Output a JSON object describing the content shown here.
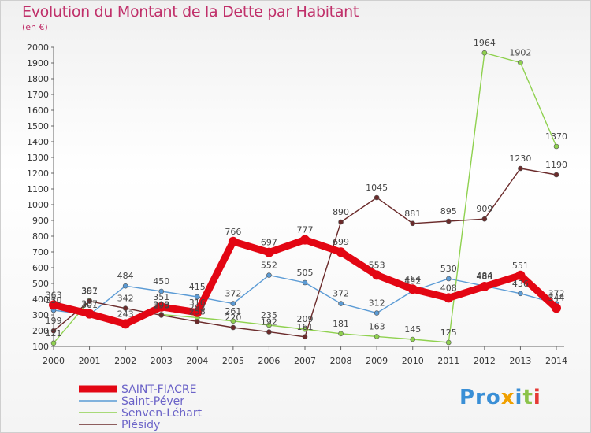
{
  "title": "Evolution du Montant de la Dette par Habitant",
  "subtitle": "(en €)",
  "logo": "Proxiti",
  "chart_data": {
    "type": "line",
    "x": [
      "2000",
      "2001",
      "2002",
      "2003",
      "2004",
      "2005",
      "2006",
      "2007",
      "2008",
      "2009",
      "2010",
      "2011",
      "2012",
      "2013",
      "2014"
    ],
    "ylim": [
      100,
      2000
    ],
    "yticks": [
      100,
      200,
      300,
      400,
      500,
      600,
      700,
      800,
      900,
      1000,
      1100,
      1200,
      1300,
      1400,
      1500,
      1600,
      1700,
      1800,
      1900,
      2000
    ],
    "grid": false,
    "legend_position": "bottom-left",
    "series": [
      {
        "name": "SAINT-FIACRE",
        "color": "#e30613",
        "values": [
          363,
          307,
          243,
          351,
          316,
          766,
          697,
          777,
          699,
          553,
          464,
          408,
          480,
          551,
          344
        ],
        "labels": [
          "363",
          "307",
          "243",
          "351",
          "316",
          "766",
          "697",
          "777",
          "699",
          "553",
          "464",
          "408",
          "480",
          "551",
          "344"
        ]
      },
      {
        "name": "Saint-Péver",
        "color": "#5b9bd5",
        "values": [
          330,
          301,
          484,
          450,
          415,
          372,
          552,
          505,
          372,
          312,
          452,
          530,
          484,
          436,
          372
        ],
        "labels": [
          "330",
          "301",
          "484",
          "450",
          "415",
          "372",
          "552",
          "505",
          "372",
          "312",
          "452",
          "530",
          "484",
          "436",
          "372"
        ]
      },
      {
        "name": "Senven-Léhart",
        "color": "#8fd14f",
        "values": [
          121,
          391,
          null,
          303,
          283,
          261,
          235,
          209,
          181,
          163,
          145,
          125,
          1964,
          1902,
          1370
        ],
        "labels": [
          "121",
          "391",
          "",
          "303",
          "283",
          "261",
          "235",
          "209",
          "181",
          "163",
          "145",
          "125",
          "1964",
          "1902",
          "1370"
        ]
      },
      {
        "name": "Plésidy",
        "color": "#6b2b2b",
        "values": [
          199,
          387,
          342,
          298,
          258,
          220,
          192,
          161,
          890,
          1045,
          881,
          895,
          909,
          1230,
          1190
        ],
        "labels": [
          "199",
          "387",
          "342",
          "298",
          "258",
          "220",
          "192",
          "161",
          "890",
          "1045",
          "881",
          "895",
          "909",
          "1230",
          "1190"
        ]
      }
    ]
  }
}
